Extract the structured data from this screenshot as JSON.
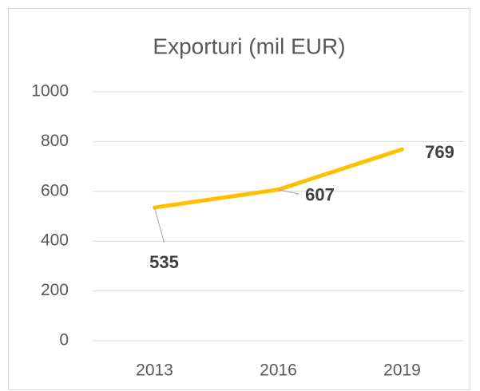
{
  "chart_data": {
    "type": "line",
    "title": "Exporturi (mil EUR)",
    "categories": [
      "2013",
      "2016",
      "2019"
    ],
    "series": [
      {
        "name": "Exporturi",
        "color": "#ffc000",
        "values": [
          535,
          607,
          769
        ]
      }
    ],
    "ylim": [
      0,
      1000
    ],
    "yticks": [
      0,
      200,
      400,
      600,
      800,
      1000
    ],
    "grid": true
  }
}
